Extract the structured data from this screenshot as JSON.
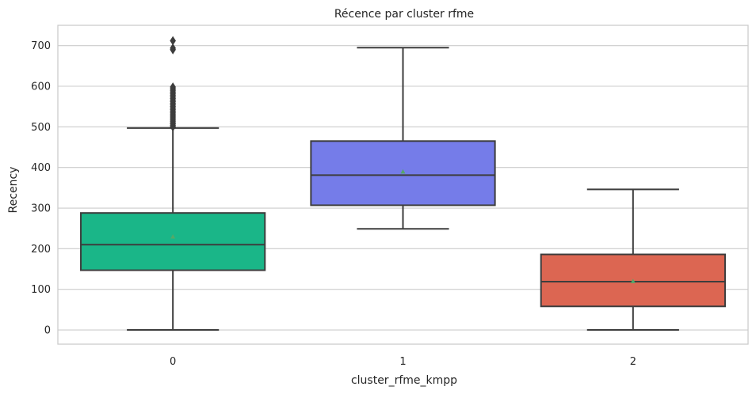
{
  "chart_data": {
    "type": "box",
    "title": "Récence par cluster rfme",
    "xlabel": "cluster_rfme_kmpp",
    "ylabel": "Recency",
    "categories": [
      "0",
      "1",
      "2"
    ],
    "ylim": [
      -35,
      750
    ],
    "yticks": [
      0,
      100,
      200,
      300,
      400,
      500,
      600,
      700
    ],
    "grid": "horizontal",
    "colors": [
      "#1ab688",
      "#757ce9",
      "#dc6652"
    ],
    "series": [
      {
        "category": "0",
        "whisker_low": 0,
        "q1": 147,
        "median": 210,
        "q3": 288,
        "whisker_high": 497,
        "mean": 230,
        "outliers": [
          500,
          503,
          507,
          510,
          514,
          518,
          522,
          526,
          530,
          534,
          538,
          542,
          546,
          550,
          554,
          558,
          562,
          566,
          570,
          574,
          578,
          582,
          586,
          590,
          594,
          598,
          690,
          694,
          712
        ]
      },
      {
        "category": "1",
        "whisker_low": 249,
        "q1": 307,
        "median": 381,
        "q3": 465,
        "whisker_high": 695,
        "mean": 390,
        "outliers": []
      },
      {
        "category": "2",
        "whisker_low": 0,
        "q1": 58,
        "median": 119,
        "q3": 186,
        "whisker_high": 346,
        "mean": 120,
        "outliers": []
      }
    ]
  }
}
